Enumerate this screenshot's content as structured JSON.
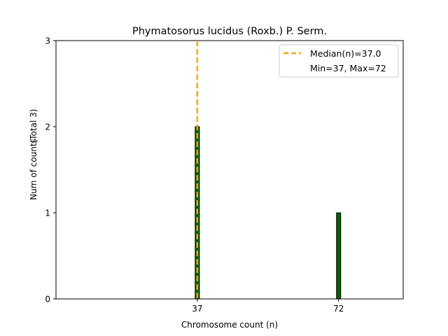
{
  "chart_data": {
    "type": "bar",
    "title": "Phymatosorus lucidus (Roxb.) P. Serm.",
    "xlabel": "Chromosome count (n)",
    "ylabel": "Num of counts",
    "ylabel_total": "(Total 3)",
    "x_ticks": [
      37,
      72
    ],
    "y_ticks": [
      0,
      1,
      2,
      3
    ],
    "xlim": [
      2,
      88
    ],
    "ylim": [
      0,
      3
    ],
    "bar_color": "#006400",
    "median_color": "#FFA500",
    "bars": [
      {
        "x": 37,
        "count": 2
      },
      {
        "x": 72,
        "count": 1
      }
    ],
    "median": 37.0,
    "legend": {
      "placement": "top-right",
      "median_label": "Median(n)=37.0",
      "range_label": "Min=37, Max=72"
    }
  }
}
